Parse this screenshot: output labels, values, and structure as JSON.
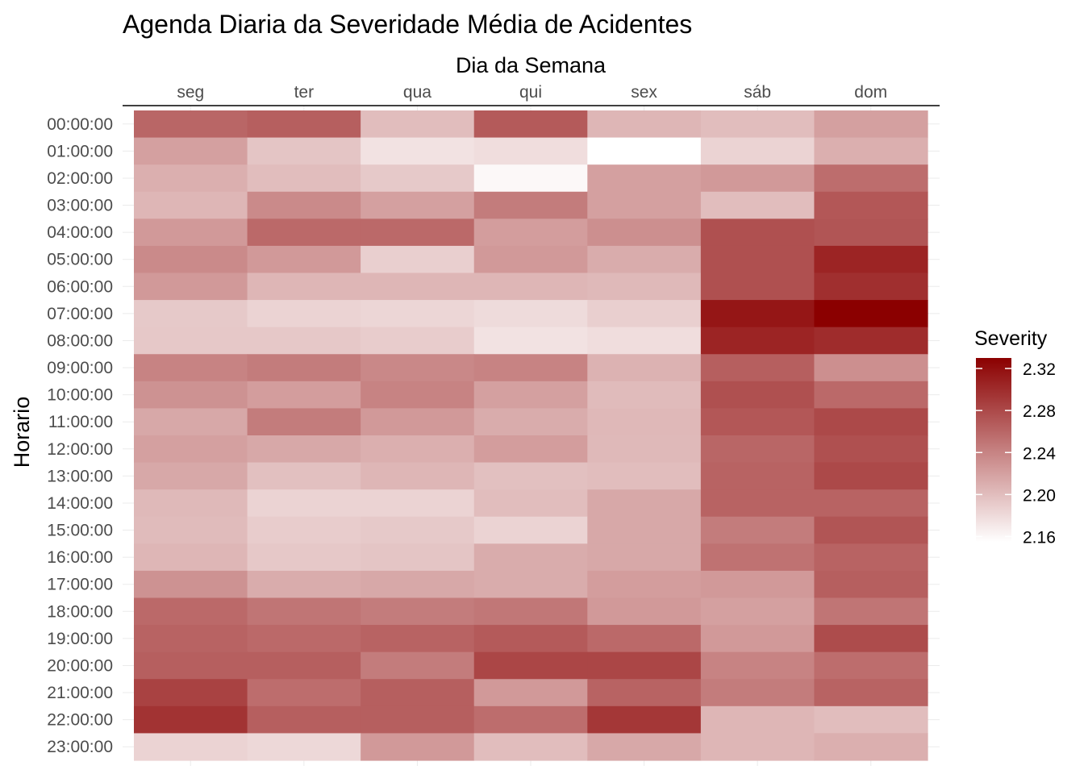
{
  "chart_data": {
    "type": "heatmap",
    "title": "Agenda Diaria da Severidade Média de Acidentes",
    "xlabel": "Dia da Semana",
    "ylabel": "Horario",
    "x_position": "top",
    "categories_x": [
      "seg",
      "ter",
      "qua",
      "qui",
      "sex",
      "sáb",
      "dom"
    ],
    "categories_y": [
      "00:00:00",
      "01:00:00",
      "02:00:00",
      "03:00:00",
      "04:00:00",
      "05:00:00",
      "06:00:00",
      "07:00:00",
      "08:00:00",
      "09:00:00",
      "10:00:00",
      "11:00:00",
      "12:00:00",
      "13:00:00",
      "14:00:00",
      "15:00:00",
      "16:00:00",
      "17:00:00",
      "18:00:00",
      "19:00:00",
      "20:00:00",
      "21:00:00",
      "22:00:00",
      "23:00:00"
    ],
    "values": [
      [
        2.26,
        2.265,
        2.2,
        2.268,
        2.205,
        2.2,
        2.22
      ],
      [
        2.22,
        2.195,
        2.175,
        2.178,
        2.155,
        2.185,
        2.21
      ],
      [
        2.21,
        2.2,
        2.192,
        2.16,
        2.22,
        2.225,
        2.255
      ],
      [
        2.205,
        2.235,
        2.22,
        2.245,
        2.22,
        2.2,
        2.27
      ],
      [
        2.225,
        2.258,
        2.258,
        2.222,
        2.232,
        2.275,
        2.272
      ],
      [
        2.235,
        2.225,
        2.188,
        2.225,
        2.212,
        2.275,
        2.305
      ],
      [
        2.225,
        2.205,
        2.205,
        2.205,
        2.203,
        2.275,
        2.298
      ],
      [
        2.192,
        2.185,
        2.183,
        2.18,
        2.188,
        2.315,
        2.33
      ],
      [
        2.193,
        2.193,
        2.19,
        2.175,
        2.178,
        2.305,
        2.3
      ],
      [
        2.24,
        2.245,
        2.237,
        2.24,
        2.208,
        2.265,
        2.232
      ],
      [
        2.23,
        2.222,
        2.24,
        2.22,
        2.202,
        2.275,
        2.258
      ],
      [
        2.215,
        2.245,
        2.225,
        2.212,
        2.204,
        2.27,
        2.28
      ],
      [
        2.22,
        2.215,
        2.21,
        2.222,
        2.203,
        2.26,
        2.275
      ],
      [
        2.215,
        2.198,
        2.205,
        2.198,
        2.2,
        2.262,
        2.28
      ],
      [
        2.203,
        2.185,
        2.185,
        2.2,
        2.215,
        2.262,
        2.262
      ],
      [
        2.202,
        2.19,
        2.192,
        2.185,
        2.215,
        2.245,
        2.272
      ],
      [
        2.205,
        2.193,
        2.195,
        2.212,
        2.215,
        2.252,
        2.262
      ],
      [
        2.23,
        2.212,
        2.215,
        2.212,
        2.222,
        2.225,
        2.265
      ],
      [
        2.258,
        2.25,
        2.245,
        2.248,
        2.225,
        2.22,
        2.25
      ],
      [
        2.262,
        2.258,
        2.262,
        2.268,
        2.258,
        2.225,
        2.278
      ],
      [
        2.265,
        2.265,
        2.245,
        2.282,
        2.282,
        2.24,
        2.255
      ],
      [
        2.285,
        2.255,
        2.265,
        2.225,
        2.262,
        2.245,
        2.262
      ],
      [
        2.295,
        2.265,
        2.265,
        2.255,
        2.292,
        2.205,
        2.2
      ],
      [
        2.185,
        2.182,
        2.225,
        2.2,
        2.215,
        2.205,
        2.21
      ]
    ],
    "legend": {
      "title": "Severity",
      "placement": "right",
      "breaks": [
        "2.32",
        "2.28",
        "2.24",
        "2.20",
        "2.16"
      ],
      "break_values": [
        2.32,
        2.28,
        2.24,
        2.2,
        2.16
      ],
      "limits": [
        2.155,
        2.33
      ]
    },
    "color_low": "#ffffff",
    "color_high": "#8b0000",
    "grid": true
  }
}
